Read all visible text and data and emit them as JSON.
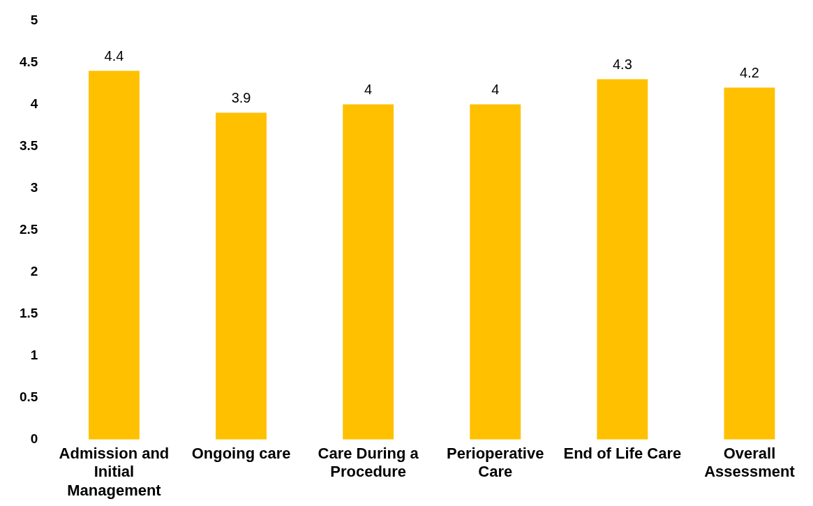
{
  "chart_data": {
    "type": "bar",
    "categories": [
      "Admission and Initial Management",
      "Ongoing care",
      "Care During a Procedure",
      "Perioperative Care",
      "End of Life Care",
      "Overall Assessment"
    ],
    "values": [
      4.4,
      3.9,
      4,
      4,
      4.3,
      4.2
    ],
    "color": "#ffc000",
    "ylim": [
      0,
      5
    ],
    "yticks": [
      0,
      0.5,
      1,
      1.5,
      2,
      2.5,
      3,
      3.5,
      4,
      4.5,
      5
    ],
    "grid": false,
    "legend": false,
    "data_labels": true
  }
}
